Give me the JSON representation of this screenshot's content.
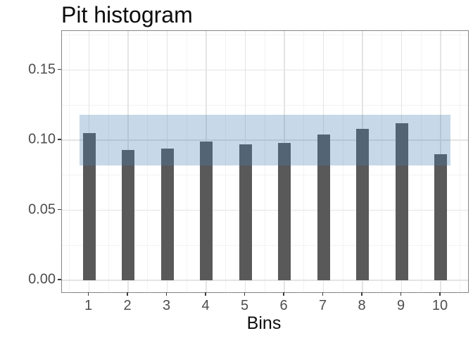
{
  "title": "Pit histogram",
  "chart_data": {
    "type": "bar",
    "title": "Pit histogram",
    "xlabel": "Bins",
    "ylabel": "",
    "categories": [
      "1",
      "2",
      "3",
      "4",
      "5",
      "6",
      "7",
      "8",
      "9",
      "10"
    ],
    "values": [
      0.105,
      0.093,
      0.094,
      0.099,
      0.097,
      0.098,
      0.104,
      0.108,
      0.112,
      0.09
    ],
    "y_tick_values": [
      0,
      0.05,
      0.1,
      0.15
    ],
    "y_tick_labels": [
      "0.00",
      "0.05",
      "0.10",
      "0.15"
    ],
    "ylim": [
      -0.008,
      0.178
    ],
    "grid": "on",
    "legend": "none",
    "band": {
      "name": "uniformity-confidence-band",
      "ymin": 0.082,
      "ymax": 0.118,
      "xmin_bin": 0.75,
      "xmax_bin": 10.25,
      "color": "#4682b4",
      "opacity": 0.3
    },
    "colors": {
      "bar": "#595959",
      "grid_major": "#e4e4e4",
      "grid_minor": "#f3f3f3",
      "panel_border": "#858585",
      "tick_mark": "#3d3d3d",
      "tick_label": "#4d4d4d",
      "text": "#0d0d0d",
      "background": "#ffffff"
    }
  }
}
